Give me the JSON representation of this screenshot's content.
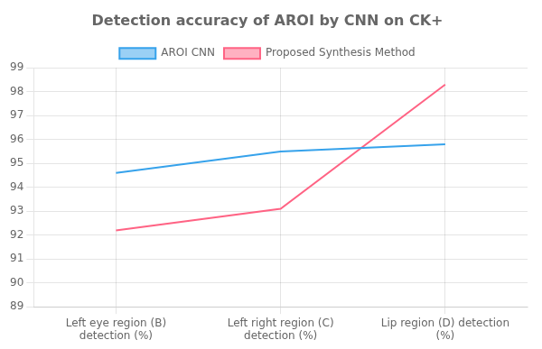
{
  "chart_data": {
    "type": "line",
    "title": "Detection accuracy of AROI by CNN on CK+",
    "categories": [
      "Left eye region (B)\ndetection (%)",
      "Left right region (C)\ndetection (%)",
      "Lip region (D) detection\n(%)"
    ],
    "series": [
      {
        "name": "AROI CNN",
        "values": [
          94.6,
          95.5,
          95.8
        ]
      },
      {
        "name": "Proposed Synthesis Method",
        "values": [
          92.2,
          93.1,
          98.3
        ]
      }
    ],
    "ylim": [
      89,
      99
    ],
    "yticks": [
      89,
      90,
      91,
      92,
      93,
      94,
      95,
      96,
      97,
      98,
      99
    ],
    "grid": true,
    "legend": "top"
  }
}
